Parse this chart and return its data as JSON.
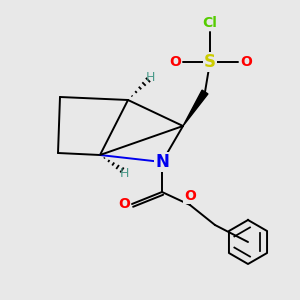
{
  "background_color": "#e8e8e8",
  "fig_size": [
    3.0,
    3.0
  ],
  "dpi": 100,
  "lw": 1.4,
  "atom_colors": {
    "Cl": "#55cc00",
    "S": "#cccc00",
    "O": "#ff0000",
    "N": "#0000ee",
    "H": "#4a9a8a",
    "C": "#000000"
  }
}
